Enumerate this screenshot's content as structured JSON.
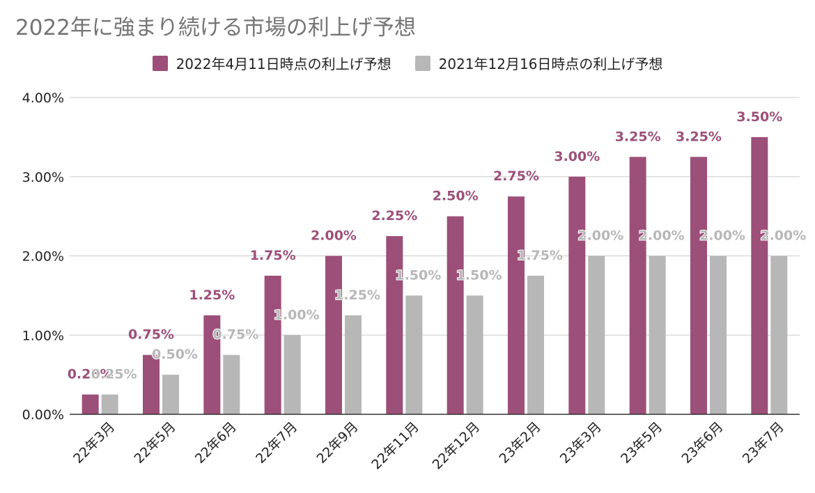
{
  "chart_data": {
    "type": "bar",
    "title": "2022年に強まり続ける市場の利上げ予想",
    "legend_position": "top",
    "grid": true,
    "ylim": [
      0,
      4
    ],
    "y_ticks": [
      "0.00%",
      "1.00%",
      "2.00%",
      "3.00%",
      "4.00%"
    ],
    "categories": [
      "22年3月",
      "22年5月",
      "22年6月",
      "22年7月",
      "22年9月",
      "22年11月",
      "22年12月",
      "23年2月",
      "23年3月",
      "23年5月",
      "23年6月",
      "23年7月"
    ],
    "series": [
      {
        "name": "2022年4月11日時点の利上げ予想",
        "color": "#9c4f78",
        "values": [
          0.25,
          0.75,
          1.25,
          1.75,
          2.0,
          2.25,
          2.5,
          2.75,
          3.0,
          3.25,
          3.25,
          3.5
        ],
        "labels": [
          "0.25%",
          "0.75%",
          "1.25%",
          "1.75%",
          "2.00%",
          "2.25%",
          "2.50%",
          "2.75%",
          "3.00%",
          "3.25%",
          "3.25%",
          "3.50%"
        ]
      },
      {
        "name": "2021年12月16日時点の利上げ予想",
        "color": "#b7b7b7",
        "values": [
          0.25,
          0.5,
          0.75,
          1.0,
          1.25,
          1.5,
          1.5,
          1.75,
          2.0,
          2.0,
          2.0,
          2.0
        ],
        "labels": [
          "0.25%",
          "0.50%",
          "0.75%",
          "1.00%",
          "1.25%",
          "1.50%",
          "1.50%",
          "1.75%",
          "2.00%",
          "2.00%",
          "2.00%",
          "2.00%"
        ]
      }
    ]
  }
}
